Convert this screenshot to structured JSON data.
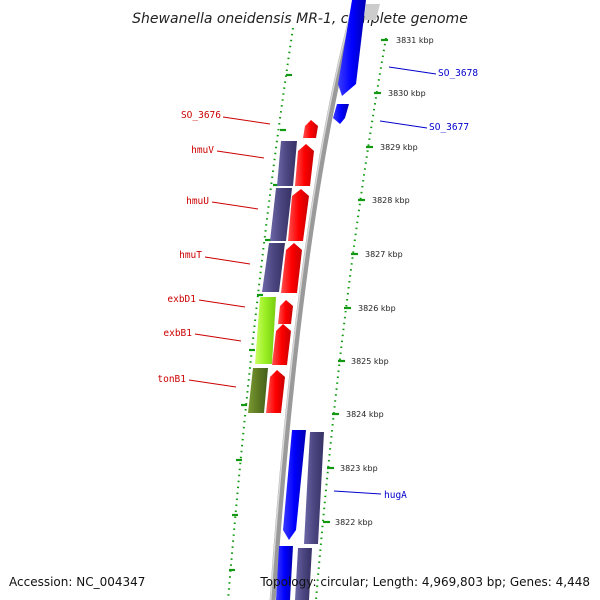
{
  "title": "Shewanella oneidensis MR-1, complete genome",
  "footer": {
    "accession": "Accession: NC_004347",
    "topology": "Topology: circular; Length: 4,969,803 bp; Genes: 4,448"
  },
  "colors": {
    "forward": "#ff0000",
    "reverse": "#0000ff",
    "slate": "#4b4680",
    "lime": "#99ee22",
    "olive": "#5d7a22",
    "tick": "#119911",
    "left_label": "#cc0000",
    "right_label": "#0000cc",
    "backbone": "#808080"
  },
  "kbp_marks": [
    "3831 kbp",
    "3830 kbp",
    "3829 kbp",
    "3828 kbp",
    "3827 kbp",
    "3826 kbp",
    "3825 kbp",
    "3824 kbp",
    "3823 kbp",
    "3822 kbp"
  ],
  "left_labels": [
    "SO_3676",
    "hmuV",
    "hmuU",
    "hmuT",
    "exbD1",
    "exbB1",
    "tonB1"
  ],
  "right_labels": [
    "SO_3678",
    "SO_3677",
    "hugA"
  ]
}
